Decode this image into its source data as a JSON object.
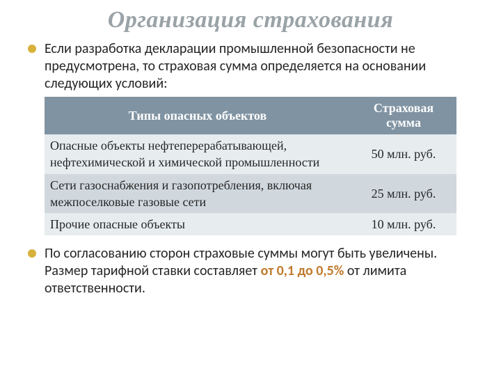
{
  "title": {
    "text": "Организация страхования",
    "color": "#9aa3a7",
    "fontsize": 34
  },
  "bullet_color": "#d7b13a",
  "body_fontsize": 20,
  "paragraphs": {
    "intro": "Если разработка декларации промышленной безопасности не предусмотрена, то страховая сумма определяется на основании следующих условий:",
    "outro_pre": "По согласованию сторон страховые суммы могут быть увеличены. Размер тарифной ставки составляет ",
    "outro_highlight": "от 0,1 до 0,5%",
    "outro_post": " от лимита ответственности.",
    "highlight_color": "#c07a2c"
  },
  "table": {
    "fontsize": 18,
    "header_bg": "#8093a2",
    "header_fg": "#ffffff",
    "row_alt_bg_light": "#e7ecef",
    "row_alt_bg_dark": "#d0d8de",
    "col1_width": 440,
    "col2_width": 152,
    "columns": [
      "Типы опасных объектов",
      "Страховая сумма"
    ],
    "rows": [
      [
        "Опасные объекты нефтеперерабатывающей, нефтехимической и химической промышленности",
        "50 млн. руб."
      ],
      [
        "Сети газоснабжения и газопотребления, включая межпоселковые газовые сети",
        "25 млн. руб."
      ],
      [
        "Прочие опасные объекты",
        "10 млн. руб."
      ]
    ]
  }
}
